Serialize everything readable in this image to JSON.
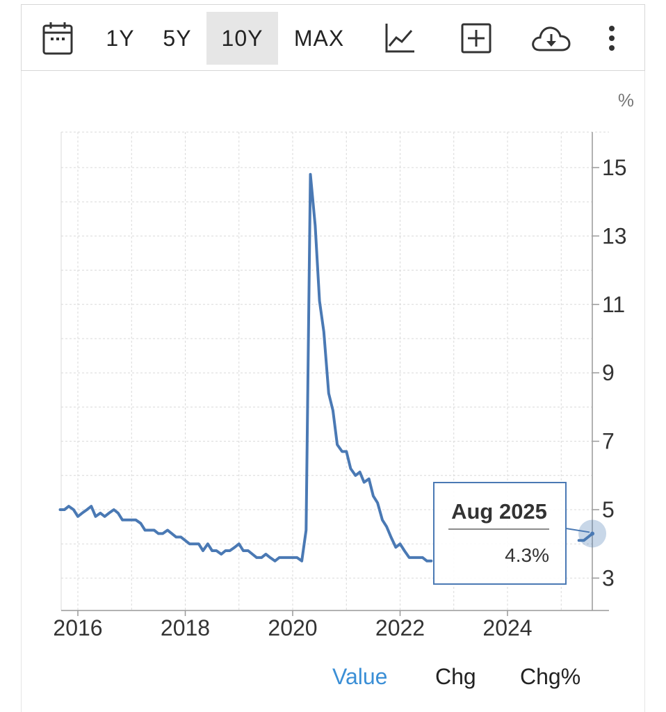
{
  "toolbar": {
    "ranges": [
      "1Y",
      "5Y",
      "10Y",
      "MAX"
    ],
    "active_range": "10Y",
    "icons": [
      "calendar-icon",
      "line-chart-icon",
      "add-box-icon",
      "cloud-download-icon",
      "more-vertical-icon"
    ]
  },
  "tabs": {
    "items": [
      "Value",
      "Chg",
      "Chg%"
    ],
    "active": "Value"
  },
  "tooltip": {
    "date": "Aug 2025",
    "value": "4.3%"
  },
  "colors": {
    "line": "#4a79b4",
    "tooltip_border": "#4a79b4",
    "active_tab": "#3b8fd6",
    "grid": "#d9d9d9"
  },
  "chart_data": {
    "type": "line",
    "title": "",
    "xlabel": "",
    "ylabel": "",
    "unit": "%",
    "x_ticks": [
      "2016",
      "2018",
      "2020",
      "2022",
      "2024"
    ],
    "y_ticks": [
      3,
      5,
      7,
      9,
      11,
      13,
      15
    ],
    "xlim": [
      2015.67,
      2025.58
    ],
    "ylim": [
      2.5,
      16.5
    ],
    "grid": true,
    "series": [
      {
        "values": [
          [
            2015.67,
            5.0
          ],
          [
            2015.75,
            5.0
          ],
          [
            2015.83,
            5.1
          ],
          [
            2015.92,
            5.0
          ],
          [
            2016.0,
            4.8
          ],
          [
            2016.08,
            4.9
          ],
          [
            2016.17,
            5.0
          ],
          [
            2016.25,
            5.1
          ],
          [
            2016.33,
            4.8
          ],
          [
            2016.42,
            4.9
          ],
          [
            2016.5,
            4.8
          ],
          [
            2016.58,
            4.9
          ],
          [
            2016.67,
            5.0
          ],
          [
            2016.75,
            4.9
          ],
          [
            2016.83,
            4.7
          ],
          [
            2016.92,
            4.7
          ],
          [
            2017.0,
            4.7
          ],
          [
            2017.08,
            4.7
          ],
          [
            2017.17,
            4.6
          ],
          [
            2017.25,
            4.4
          ],
          [
            2017.33,
            4.4
          ],
          [
            2017.42,
            4.4
          ],
          [
            2017.5,
            4.3
          ],
          [
            2017.58,
            4.3
          ],
          [
            2017.67,
            4.4
          ],
          [
            2017.75,
            4.3
          ],
          [
            2017.83,
            4.2
          ],
          [
            2017.92,
            4.2
          ],
          [
            2018.0,
            4.1
          ],
          [
            2018.08,
            4.0
          ],
          [
            2018.17,
            4.0
          ],
          [
            2018.25,
            4.0
          ],
          [
            2018.33,
            3.8
          ],
          [
            2018.42,
            4.0
          ],
          [
            2018.5,
            3.8
          ],
          [
            2018.58,
            3.8
          ],
          [
            2018.67,
            3.7
          ],
          [
            2018.75,
            3.8
          ],
          [
            2018.83,
            3.8
          ],
          [
            2018.92,
            3.9
          ],
          [
            2019.0,
            4.0
          ],
          [
            2019.08,
            3.8
          ],
          [
            2019.17,
            3.8
          ],
          [
            2019.25,
            3.7
          ],
          [
            2019.33,
            3.6
          ],
          [
            2019.42,
            3.6
          ],
          [
            2019.5,
            3.7
          ],
          [
            2019.58,
            3.6
          ],
          [
            2019.67,
            3.5
          ],
          [
            2019.75,
            3.6
          ],
          [
            2019.83,
            3.6
          ],
          [
            2019.92,
            3.6
          ],
          [
            2020.0,
            3.6
          ],
          [
            2020.08,
            3.6
          ],
          [
            2020.17,
            3.5
          ],
          [
            2020.25,
            4.4
          ],
          [
            2020.33,
            14.8
          ],
          [
            2020.42,
            13.3
          ],
          [
            2020.5,
            11.1
          ],
          [
            2020.58,
            10.2
          ],
          [
            2020.67,
            8.4
          ],
          [
            2020.75,
            7.9
          ],
          [
            2020.83,
            6.9
          ],
          [
            2020.92,
            6.7
          ],
          [
            2021.0,
            6.7
          ],
          [
            2021.08,
            6.2
          ],
          [
            2021.17,
            6.0
          ],
          [
            2021.25,
            6.1
          ],
          [
            2021.33,
            5.8
          ],
          [
            2021.42,
            5.9
          ],
          [
            2021.5,
            5.4
          ],
          [
            2021.58,
            5.2
          ],
          [
            2021.67,
            4.7
          ],
          [
            2021.75,
            4.5
          ],
          [
            2021.83,
            4.2
          ],
          [
            2021.92,
            3.9
          ],
          [
            2022.0,
            4.0
          ],
          [
            2022.08,
            3.8
          ],
          [
            2022.17,
            3.6
          ],
          [
            2022.25,
            3.6
          ],
          [
            2022.33,
            3.6
          ],
          [
            2022.42,
            3.6
          ],
          [
            2022.5,
            3.5
          ],
          [
            2022.58,
            3.5
          ],
          [
            2025.33,
            4.1
          ],
          [
            2025.42,
            4.1
          ],
          [
            2025.5,
            4.2
          ],
          [
            2025.58,
            4.3
          ]
        ]
      }
    ]
  }
}
